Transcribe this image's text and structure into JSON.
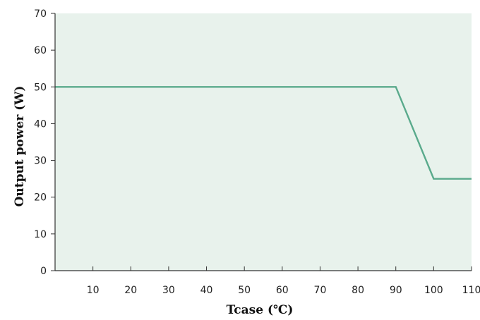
{
  "chart_data": {
    "type": "line",
    "xlabel": "Tcase (℃)",
    "ylabel": "Output power (W)",
    "xlim": [
      0,
      110
    ],
    "ylim": [
      0,
      70
    ],
    "x_ticks": [
      10,
      20,
      30,
      40,
      50,
      60,
      70,
      80,
      90,
      100,
      110
    ],
    "y_ticks": [
      0,
      10,
      20,
      30,
      40,
      50,
      60,
      70
    ],
    "grid": false,
    "series": [
      {
        "x": [
          0,
          90,
          100,
          110
        ],
        "y": [
          50,
          50,
          25,
          25
        ]
      }
    ],
    "colors": {
      "line": "#5aaa8c",
      "plot_background": "#e8f2ec",
      "axis": "#333333"
    }
  }
}
